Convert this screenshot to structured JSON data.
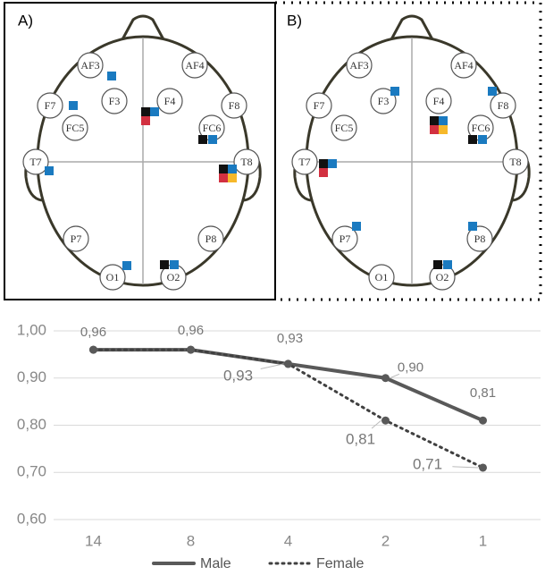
{
  "panels": [
    {
      "label": "A)",
      "electrodes": [
        "AF3",
        "AF4",
        "F7",
        "F3",
        "F4",
        "F8",
        "FC5",
        "FC6",
        "T7",
        "T8",
        "P7",
        "P8",
        "O1",
        "O2"
      ]
    },
    {
      "label": "B)",
      "electrodes": [
        "AF3",
        "AF4",
        "F7",
        "F3",
        "F4",
        "F8",
        "FC5",
        "FC6",
        "T7",
        "T8",
        "P7",
        "P8",
        "O1",
        "O2"
      ]
    }
  ],
  "chart_data": {
    "type": "line",
    "categories": [
      "14",
      "8",
      "4",
      "2",
      "1"
    ],
    "series": [
      {
        "name": "Male",
        "color": "#595959",
        "style": "solid",
        "values": [
          0.96,
          0.96,
          0.93,
          0.9,
          0.81
        ],
        "value_labels": [
          "0,96",
          "0,96",
          "0,93",
          "0,90",
          "0,81"
        ]
      },
      {
        "name": "Female",
        "color": "#404040",
        "style": "dotted",
        "values": [
          0.96,
          0.96,
          0.93,
          0.81,
          0.71
        ],
        "value_labels": [
          null,
          null,
          "0,93",
          "0,81",
          "0,71"
        ]
      }
    ],
    "ylim": [
      0.6,
      1.0
    ],
    "yticks": [
      {
        "value": 0.6,
        "label": "0,60"
      },
      {
        "value": 0.7,
        "label": "0,70"
      },
      {
        "value": 0.8,
        "label": "0,80"
      },
      {
        "value": 0.9,
        "label": "0,90"
      },
      {
        "value": 1.0,
        "label": "1,00"
      }
    ],
    "grid": true,
    "legend": "bottom"
  }
}
